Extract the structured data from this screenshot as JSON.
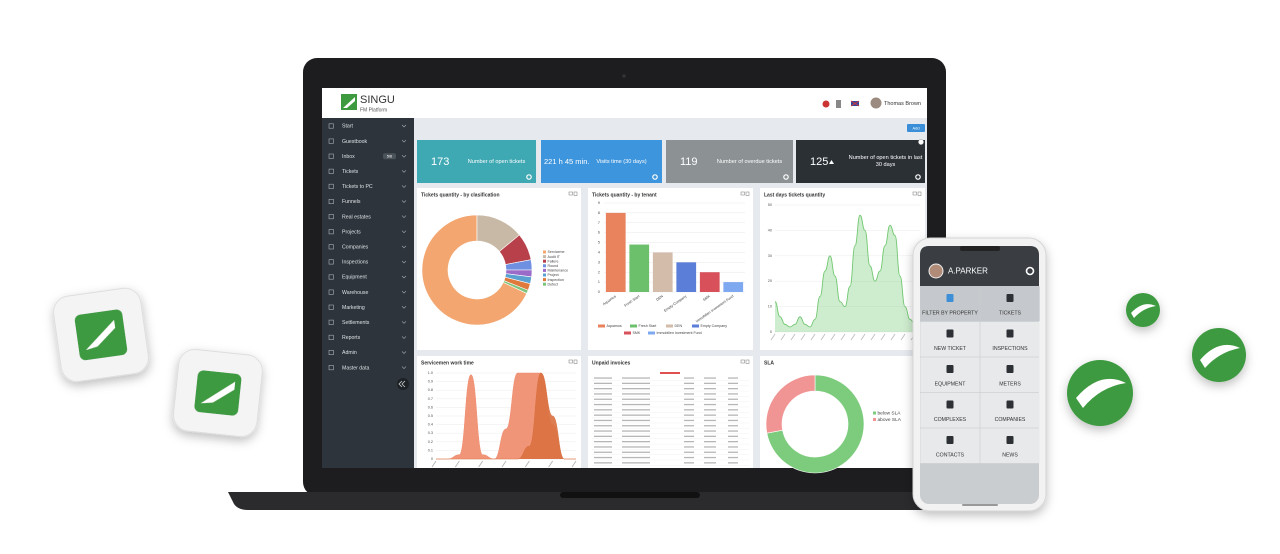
{
  "app": {
    "brand": "SINGU",
    "tagline": "FM Platform",
    "user": "Thomas Brown",
    "add_button": "Add",
    "menu": [
      "Start",
      "Guestbook",
      "Inbox",
      "Tickets",
      "Tickets to PC",
      "Funnels",
      "Real estates",
      "Projects",
      "Companies",
      "Inspections",
      "Equipment",
      "Warehouse",
      "Marketing",
      "Settlements",
      "Reports",
      "Admin",
      "Master data"
    ],
    "inbox_badge": "5/6"
  },
  "kpis": [
    {
      "value": 173,
      "label": "Number of open tickets",
      "color": "#3ea8b3"
    },
    {
      "value": "221 h 45 min.",
      "label": "Visits time (30 days)",
      "color": "#3d95dd"
    },
    {
      "value": 119,
      "label": "Number of overdue tickets",
      "color": "#8c9194"
    },
    {
      "value": 125,
      "label": "Number of open tickets in last 30 days",
      "color": "#2b3035"
    }
  ],
  "invoices": {
    "title": "Unpaid invoices"
  },
  "chart_data": [
    {
      "type": "donut",
      "title": "Tickets quantity - by clasification",
      "categories": [
        "Serviceme",
        "Audit IT",
        "Failure",
        "Round",
        "Maintenance",
        "Project",
        "Inspection",
        "Defect"
      ],
      "values": [
        68,
        14,
        8,
        3,
        2,
        2,
        2,
        1
      ],
      "colors": [
        "#f3a66f",
        "#c8b9a6",
        "#b8404a",
        "#6f8fe0",
        "#9a6bc8",
        "#5aa0d0",
        "#e07a3c",
        "#7cc47c"
      ]
    },
    {
      "type": "bar",
      "title": "Tickets quantity - by tenant",
      "categories": [
        "Aquamus",
        "Fresh Start",
        "DEN",
        "Empty Company",
        "SMK",
        "Immobilien Investment Fund"
      ],
      "values": [
        8,
        4.8,
        4,
        3,
        2,
        1
      ],
      "colors": [
        "#e8835e",
        "#6cc06c",
        "#d4bcaa",
        "#5b7ed8",
        "#d8505a",
        "#7ea8f0"
      ],
      "ylim": [
        0,
        9
      ],
      "yticks": [
        0,
        1,
        2,
        3,
        4,
        5,
        6,
        7,
        8,
        9
      ],
      "grid": true
    },
    {
      "type": "area",
      "title": "Last days tickets quantity",
      "values": [
        12,
        6,
        3,
        2,
        3,
        6,
        3,
        2,
        5,
        14,
        24,
        30,
        22,
        12,
        10,
        18,
        34,
        46,
        40,
        26,
        20,
        24,
        34,
        42,
        38,
        22,
        10,
        5,
        3,
        2
      ],
      "color": "#72c872",
      "ylim": [
        0,
        50
      ],
      "yticks": [
        0,
        10,
        20,
        30,
        40,
        50
      ],
      "grid": true
    },
    {
      "type": "area",
      "title": "Servicemen work time",
      "series": [
        {
          "color": "#f08a6a",
          "values": [
            0,
            0,
            0.05,
            0.98,
            0.05,
            0,
            0.35,
            1,
            1,
            1,
            0.4,
            0,
            0
          ]
        },
        {
          "color": "#d9703f",
          "values": [
            0,
            0,
            0,
            0,
            0,
            0,
            0,
            0,
            0.15,
            1,
            0.5,
            0,
            0
          ]
        }
      ],
      "ylim": [
        0,
        1
      ],
      "yticks": [
        0,
        0.1,
        0.2,
        0.3,
        0.4,
        0.5,
        0.6,
        0.7,
        0.8,
        0.9,
        {
          "value": 1,
          "label": "1.0"
        }
      ],
      "grid": true
    },
    {
      "type": "donut",
      "title": "SLA",
      "categories": [
        "below SLA",
        "above SLA"
      ],
      "values": [
        72,
        28
      ],
      "colors": [
        "#7dcc7d",
        "#f09494"
      ]
    }
  ],
  "mobile": {
    "user": "A.PARKER",
    "tiles": [
      "FILTER BY PROPERTY",
      "TICKETS",
      "NEW TICKET",
      "INSPECTIONS",
      "EQUIPMENT",
      "METERS",
      "COMPLEXES",
      "COMPANIES",
      "CONTACTS",
      "NEWS"
    ]
  }
}
